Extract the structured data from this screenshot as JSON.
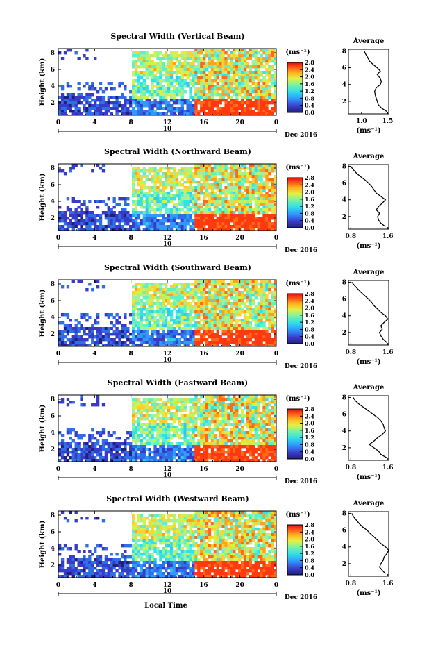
{
  "chart_data": [
    {
      "type": "heatmap",
      "title": "Spectral Width (Vertical Beam)",
      "ylabel": "Height (km)",
      "xticks": [
        "0",
        "4",
        "8",
        "12",
        "16",
        "20",
        "0"
      ],
      "yticks": [
        "2",
        "4",
        "6",
        "8"
      ],
      "date_center": "10",
      "date_right": "Dec 2016",
      "colorbar": {
        "unit": "(ms⁻¹)",
        "ticks": [
          "2.8",
          "2.4",
          "2.0",
          "1.6",
          "1.2",
          "0.8",
          "0.4",
          "0.0"
        ],
        "range": [
          0.0,
          2.8
        ]
      },
      "profile": {
        "title": "Average",
        "xlabel": "(ms⁻¹)",
        "xticks": [
          "1.0",
          "1.5"
        ],
        "yticks": [
          "2",
          "4",
          "6",
          "8"
        ],
        "heights": [
          0.8,
          1.2,
          1.6,
          2.0,
          2.4,
          2.8,
          3.2,
          3.6,
          4.0,
          4.4,
          4.8,
          5.2,
          5.6,
          6.0,
          6.4,
          6.8,
          7.2,
          7.6,
          8.0
        ],
        "values": [
          1.48,
          1.38,
          1.32,
          1.3,
          1.28,
          1.26,
          1.25,
          1.28,
          1.36,
          1.38,
          1.35,
          1.3,
          1.36,
          1.3,
          1.22,
          1.15,
          1.12,
          1.08,
          1.05
        ]
      }
    },
    {
      "type": "heatmap",
      "title": "Spectral Width (Northward Beam)",
      "ylabel": "Height (km)",
      "xticks": [
        "0",
        "4",
        "8",
        "12",
        "16",
        "20",
        "0"
      ],
      "yticks": [
        "2",
        "4",
        "6",
        "8"
      ],
      "date_center": "10",
      "date_right": "Dec 2016",
      "colorbar": {
        "unit": "(ms⁻¹)",
        "ticks": [
          "2.8",
          "2.4",
          "2.0",
          "1.6",
          "1.2",
          "0.8",
          "0.4",
          "0.0"
        ],
        "range": [
          0.0,
          2.8
        ]
      },
      "profile": {
        "title": "Average",
        "xlabel": "(ms⁻¹)",
        "xticks": [
          "0.8",
          "1.6"
        ],
        "yticks": [
          "2",
          "4",
          "6",
          "8"
        ],
        "heights": [
          0.8,
          1.2,
          1.6,
          2.0,
          2.4,
          2.8,
          3.2,
          3.6,
          4.0,
          4.4,
          4.8,
          5.2,
          5.6,
          6.0,
          6.4,
          6.8,
          7.2,
          7.6,
          8.0
        ],
        "values": [
          1.55,
          1.45,
          1.4,
          1.38,
          1.42,
          1.35,
          1.4,
          1.48,
          1.55,
          1.45,
          1.35,
          1.3,
          1.25,
          1.18,
          1.1,
          1.0,
          0.92,
          0.85,
          0.8
        ]
      }
    },
    {
      "type": "heatmap",
      "title": "Spectral Width (Southward Beam)",
      "ylabel": "Height (km)",
      "xticks": [
        "0",
        "4",
        "8",
        "12",
        "16",
        "20",
        "0"
      ],
      "yticks": [
        "2",
        "4",
        "6",
        "8"
      ],
      "date_center": "10",
      "date_right": "Dec 2016",
      "colorbar": {
        "unit": "(ms⁻¹)",
        "ticks": [
          "2.8",
          "2.4",
          "2.0",
          "1.6",
          "1.2",
          "0.8",
          "0.4",
          "0.0"
        ],
        "range": [
          0.0,
          2.8
        ]
      },
      "profile": {
        "title": "Average",
        "xlabel": "(ms⁻¹)",
        "xticks": [
          "0.8",
          "1.6"
        ],
        "yticks": [
          "2",
          "4",
          "6",
          "8"
        ],
        "heights": [
          0.8,
          1.2,
          1.6,
          2.0,
          2.4,
          2.8,
          3.2,
          3.6,
          4.0,
          4.4,
          4.8,
          5.2,
          5.6,
          6.0,
          6.4,
          6.8,
          7.2,
          7.6,
          8.0
        ],
        "values": [
          1.58,
          1.5,
          1.45,
          1.42,
          1.48,
          1.45,
          1.52,
          1.6,
          1.55,
          1.45,
          1.38,
          1.3,
          1.25,
          1.18,
          1.1,
          1.02,
          0.95,
          0.88,
          0.82
        ]
      }
    },
    {
      "type": "heatmap",
      "title": "Spectral Width (Eastward Beam)",
      "ylabel": "Height (km)",
      "xticks": [
        "0",
        "4",
        "8",
        "12",
        "16",
        "20",
        "0"
      ],
      "yticks": [
        "2",
        "4",
        "6",
        "8"
      ],
      "date_center": "10",
      "date_right": "Dec 2016",
      "colorbar": {
        "unit": "(ms⁻¹)",
        "ticks": [
          "2.8",
          "2.4",
          "2.0",
          "1.6",
          "1.2",
          "0.8",
          "0.4",
          "0.0"
        ],
        "range": [
          0.0,
          2.8
        ]
      },
      "profile": {
        "title": "Average",
        "xlabel": "(ms⁻¹)",
        "xticks": [
          "0.8",
          "1.6"
        ],
        "yticks": [
          "2",
          "4",
          "6",
          "8"
        ],
        "heights": [
          0.8,
          1.2,
          1.6,
          2.0,
          2.4,
          2.8,
          3.2,
          3.6,
          4.0,
          4.4,
          4.8,
          5.2,
          5.6,
          6.0,
          6.4,
          6.8,
          7.2,
          7.6,
          8.0
        ],
        "values": [
          1.58,
          1.45,
          1.4,
          1.3,
          1.2,
          1.3,
          1.38,
          1.48,
          1.55,
          1.52,
          1.5,
          1.45,
          1.38,
          1.28,
          1.18,
          1.08,
          0.98,
          0.9,
          0.85
        ]
      }
    },
    {
      "type": "heatmap",
      "title": "Spectral Width (Westward Beam)",
      "ylabel": "Height (km)",
      "xticks": [
        "0",
        "4",
        "8",
        "12",
        "16",
        "20",
        "0"
      ],
      "yticks": [
        "2",
        "4",
        "6",
        "8"
      ],
      "date_center": "10",
      "date_right": "Dec 2016",
      "xlabel": "Local Time",
      "colorbar": {
        "unit": "(ms⁻¹)",
        "ticks": [
          "2.8",
          "2.4",
          "2.0",
          "1.6",
          "1.2",
          "0.8",
          "0.4",
          "0.0"
        ],
        "range": [
          0.0,
          2.8
        ]
      },
      "profile": {
        "title": "Average",
        "xlabel": "(ms⁻¹)",
        "xticks": [
          "0.8",
          "1.6"
        ],
        "yticks": [
          "2",
          "4",
          "6",
          "8"
        ],
        "heights": [
          0.8,
          1.2,
          1.6,
          2.0,
          2.4,
          2.8,
          3.2,
          3.6,
          4.0,
          4.4,
          4.8,
          5.2,
          5.6,
          6.0,
          6.4,
          6.8,
          7.2,
          7.6,
          8.0
        ],
        "values": [
          1.55,
          1.48,
          1.42,
          1.45,
          1.5,
          1.52,
          1.58,
          1.62,
          1.55,
          1.45,
          1.38,
          1.3,
          1.22,
          1.15,
          1.05,
          0.98,
          0.92,
          0.86,
          0.82
        ]
      }
    }
  ]
}
